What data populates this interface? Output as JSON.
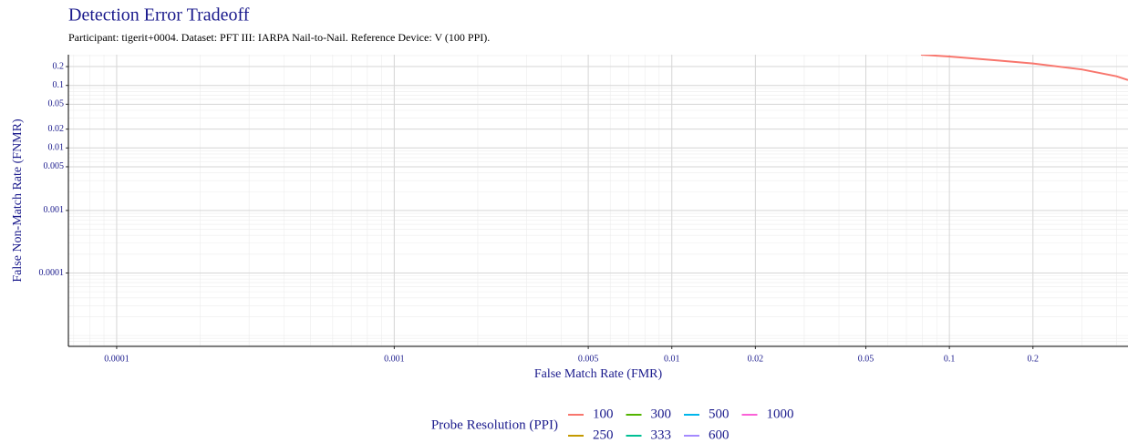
{
  "chart_data": {
    "type": "line",
    "title": "Detection Error Tradeoff",
    "subtitle": "Participant: tigerit+0004. Dataset: PFT III: IARPA Nail-to-Nail. Reference Device: V (100 PPI).",
    "x_label": "False Match Rate (FMR)",
    "y_label": "False Non-Match Rate (FNMR)",
    "legend_title": "Probe Resolution (PPI)",
    "x_scale": "log",
    "y_scale": "log",
    "grid": true,
    "xlim": [
      6.7e-05,
      0.44
    ],
    "ylim": [
      6.7e-06,
      0.31
    ],
    "xticks": [
      0.0001,
      0.001,
      0.005,
      0.01,
      0.02,
      0.05,
      0.1,
      0.2
    ],
    "yticks": [
      0.0001,
      0.001,
      0.005,
      0.01,
      0.02,
      0.05,
      0.1,
      0.2
    ],
    "series": [
      {
        "name": "100",
        "color": "#F8766D",
        "x": [
          0.079,
          0.1,
          0.15,
          0.2,
          0.3,
          0.4,
          0.44
        ],
        "values": [
          0.31,
          0.29,
          0.25,
          0.224,
          0.18,
          0.14,
          0.122
        ]
      },
      {
        "name": "250",
        "color": "#C49A00",
        "x": [],
        "values": []
      },
      {
        "name": "300",
        "color": "#53B400",
        "x": [],
        "values": []
      },
      {
        "name": "333",
        "color": "#00C094",
        "x": [],
        "values": []
      },
      {
        "name": "500",
        "color": "#00B6EB",
        "x": [],
        "values": []
      },
      {
        "name": "600",
        "color": "#A58AFF",
        "x": [],
        "values": []
      },
      {
        "name": "1000",
        "color": "#FB61D7",
        "x": [],
        "values": []
      }
    ]
  }
}
